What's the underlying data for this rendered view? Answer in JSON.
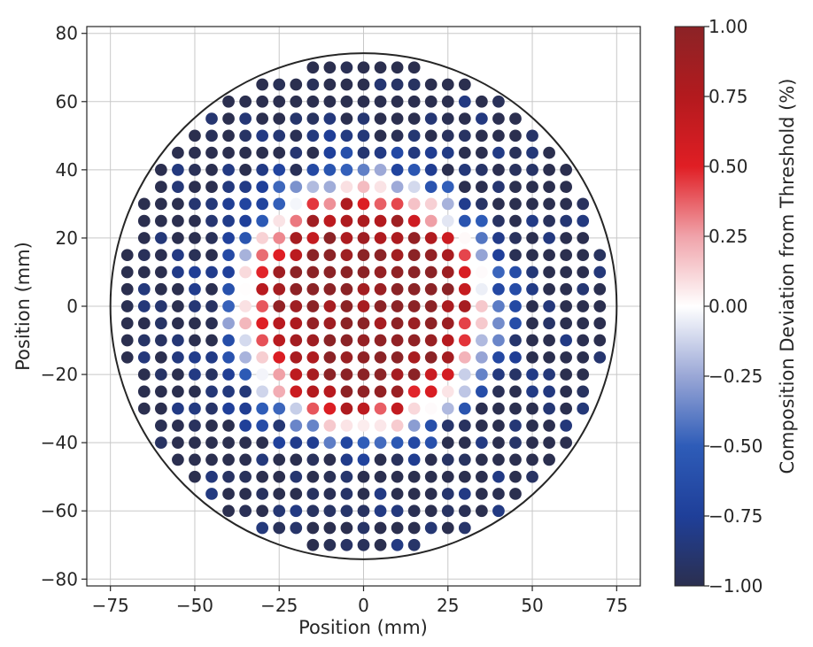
{
  "chart_data": {
    "type": "scatter",
    "title": "",
    "xlabel": "Position (mm)",
    "ylabel": "Position (mm)",
    "xlim": [
      -82,
      82
    ],
    "ylim": [
      -82,
      82
    ],
    "xticks": [
      -75,
      -50,
      -25,
      0,
      25,
      50,
      75
    ],
    "xtick_labels": [
      "−75",
      "−50",
      "−25",
      "0",
      "25",
      "50",
      "75"
    ],
    "yticks": [
      -80,
      -60,
      -40,
      -20,
      0,
      20,
      40,
      60,
      80
    ],
    "ytick_labels": [
      "−80",
      "−60",
      "−40",
      "−20",
      "0",
      "20",
      "40",
      "60",
      "80"
    ],
    "grid": true,
    "wafer_radius_mm": 75,
    "point_pitch_mm": 5,
    "point_pattern": "square grid at 5 mm pitch covering the 75 mm radius wafer; x from -70 to 70, y from -70 to 70",
    "value_model": "composition deviation is strongly positive (dark red, ~1.0) in the central region (radius < ~20 mm), decreasing to ~0 at ~35 mm and strongly negative (dark blue, ~-1.0) near the wafer edge (radius > ~55 mm)",
    "colorbar": {
      "label": "Composition Deviation from Threshold (%)",
      "min": -1.0,
      "max": 1.0,
      "ticks": [
        1.0,
        0.75,
        0.5,
        0.25,
        0.0,
        -0.25,
        -0.5,
        -0.75,
        -1.0
      ],
      "tick_labels": [
        "1.00",
        "0.75",
        "0.50",
        "0.25",
        "0.00",
        "−0.25",
        "−0.50",
        "−0.75",
        "−1.00"
      ],
      "colormap": [
        "#2b2f4f",
        "#1f3f99",
        "#2e5cb8",
        "#9aa7d6",
        "#ffffff",
        "#f0a3aa",
        "#e01e24",
        "#b31a1e",
        "#8b2326"
      ]
    }
  }
}
